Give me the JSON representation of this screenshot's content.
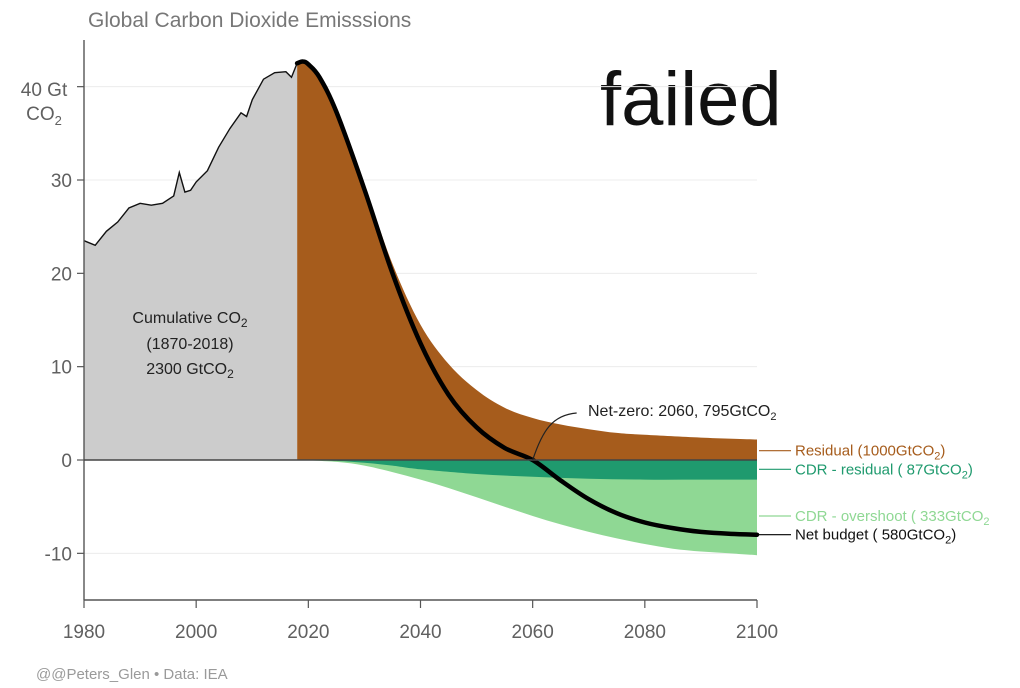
{
  "overlay_text": "failed",
  "credit": "@@Peters_Glen • Data: IEA",
  "colors": {
    "historical": "#cccccc",
    "residual": "#a65c1c",
    "cdr_residual": "#1f9a6e",
    "cdr_overshoot": "#8fd894",
    "net_line": "#000000"
  },
  "chart_data": {
    "type": "area",
    "title": "Global Carbon Dioxide Emisssions",
    "y_top_label": "40 Gt",
    "y_top_label_unit": "CO",
    "y_top_label_sub": "2",
    "xlim": [
      1980,
      2100
    ],
    "ylim": [
      -15,
      45
    ],
    "x_ticks": [
      1980,
      2000,
      2020,
      2040,
      2060,
      2080,
      2100
    ],
    "x_tick_labels": [
      "1980",
      "2000",
      "2020",
      "2040",
      "2060",
      "2080",
      "2100"
    ],
    "y_ticks": [
      -10,
      0,
      10,
      20,
      30,
      40
    ],
    "y_tick_labels": [
      "-10",
      "0",
      "10",
      "20",
      "30",
      ""
    ],
    "grid": "horizontal",
    "historical": {
      "x": [
        1980,
        1982,
        1984,
        1986,
        1988,
        1990,
        1992,
        1994,
        1996,
        1997,
        1998,
        1999,
        2000,
        2002,
        2004,
        2006,
        2008,
        2009,
        2010,
        2012,
        2014,
        2016,
        2017,
        2018
      ],
      "y": [
        23.5,
        23.0,
        24.5,
        25.5,
        27.0,
        27.5,
        27.3,
        27.5,
        28.3,
        30.8,
        28.7,
        28.9,
        29.8,
        31.0,
        33.5,
        35.5,
        37.2,
        36.8,
        38.6,
        40.8,
        41.5,
        41.6,
        41.0,
        42.5
      ]
    },
    "residual": {
      "x": [
        2018,
        2019,
        2020,
        2022,
        2025,
        2030,
        2035,
        2040,
        2045,
        2050,
        2055,
        2060,
        2065,
        2070,
        2075,
        2080,
        2090,
        2100
      ],
      "y": [
        42.5,
        42.7,
        42.4,
        41.0,
        37.5,
        29.5,
        21.0,
        14.5,
        10.3,
        7.5,
        5.6,
        4.5,
        3.8,
        3.3,
        2.9,
        2.7,
        2.4,
        2.2
      ]
    },
    "cdr_residual": {
      "x": [
        2018,
        2025,
        2030,
        2035,
        2040,
        2050,
        2060,
        2070,
        2080,
        2090,
        2100
      ],
      "y": [
        0,
        -0.1,
        -0.3,
        -0.6,
        -1.0,
        -1.5,
        -1.8,
        -2.0,
        -2.1,
        -2.1,
        -2.1
      ]
    },
    "cdr_overshoot": {
      "x": [
        2018,
        2025,
        2030,
        2035,
        2040,
        2045,
        2050,
        2055,
        2060,
        2065,
        2070,
        2075,
        2080,
        2085,
        2090,
        2095,
        2100
      ],
      "y": [
        0,
        -0.2,
        -0.6,
        -1.3,
        -2.1,
        -3.0,
        -4.0,
        -5.0,
        -6.0,
        -6.9,
        -7.7,
        -8.4,
        -9.0,
        -9.5,
        -9.8,
        -10.0,
        -10.2
      ]
    },
    "net": {
      "x": [
        2018,
        2019,
        2020,
        2022,
        2025,
        2030,
        2035,
        2040,
        2045,
        2050,
        2055,
        2060,
        2065,
        2070,
        2075,
        2080,
        2085,
        2090,
        2095,
        2100
      ],
      "y": [
        42.5,
        42.7,
        42.4,
        41.0,
        37.3,
        29.0,
        20.0,
        12.5,
        7.0,
        3.5,
        1.3,
        0.0,
        -2.2,
        -4.2,
        -5.7,
        -6.7,
        -7.3,
        -7.7,
        -7.9,
        -8.0
      ]
    },
    "annotations": {
      "cumulative_l1": "Cumulative CO",
      "cumulative_l1_sub": "2",
      "cumulative_l2": "(1870-2018)",
      "cumulative_l3": "2300 GtCO",
      "cumulative_l3_sub": "2",
      "net_zero": "Net-zero: 2060, 795GtCO",
      "net_zero_sub": "2",
      "net_zero_point": {
        "x": 2060,
        "y": 0
      }
    },
    "legend": {
      "placement": "right",
      "entries": [
        {
          "key": "residual",
          "pre": "Residual (1000GtCO",
          "sub": "2",
          "post": ")",
          "color": "#a65c1c",
          "y_value": 1.0
        },
        {
          "key": "cdr_residual",
          "pre": "CDR - residual ( 87GtCO",
          "sub": "2",
          "post": ")",
          "color": "#1f9a6e",
          "y_value": -1.0
        },
        {
          "key": "cdr_overshoot",
          "pre": "CDR - overshoot ( 333GtCO",
          "sub": "2",
          "post": "",
          "color": "#8fd894",
          "y_value": -6.0
        },
        {
          "key": "net",
          "pre": "Net budget ( 580GtCO",
          "sub": "2",
          "post": ")",
          "color": "#000000",
          "y_value": -8.0
        }
      ]
    }
  }
}
